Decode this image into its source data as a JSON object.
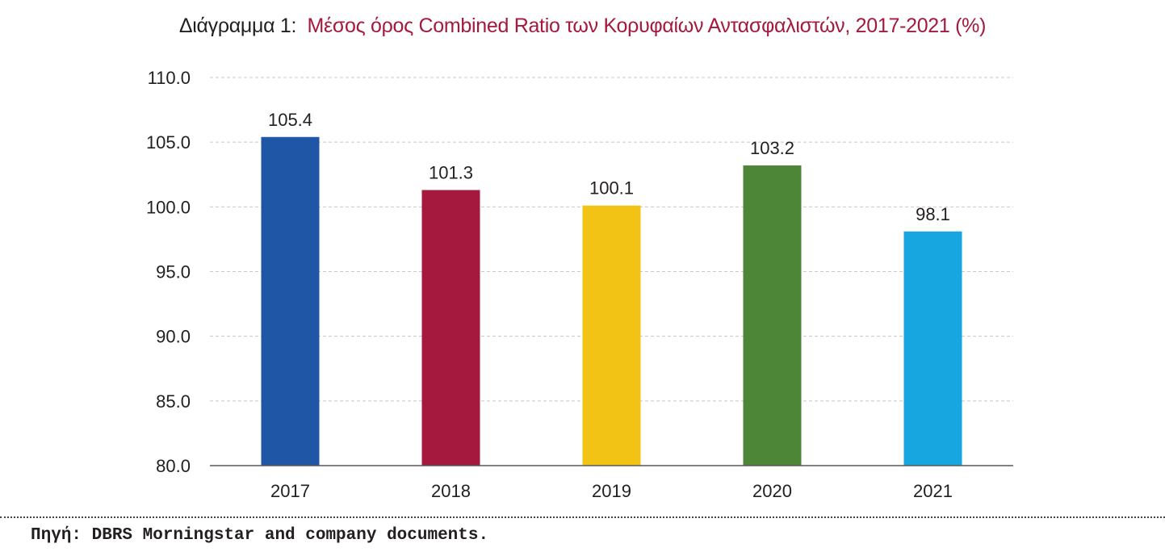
{
  "title": {
    "label": "Διάγραμμα 1:",
    "text": "Μέσος όρος Combined Ratio των Κορυφαίων Αντασφαλιστών, 2017-2021 (%)"
  },
  "source": "Πηγή: DBRS Morningstar and company documents.",
  "chart_data": {
    "type": "bar",
    "title": "Μέσος όρος Combined Ratio των Κορυφαίων Αντασφαλιστών, 2017-2021 (%)",
    "categories": [
      "2017",
      "2018",
      "2019",
      "2020",
      "2021"
    ],
    "values": [
      105.4,
      101.3,
      100.1,
      103.2,
      98.1
    ],
    "value_labels": [
      "105.4",
      "101.3",
      "100.1",
      "103.2",
      "98.1"
    ],
    "bar_colors": [
      "#1f56a5",
      "#a4193d",
      "#f2c314",
      "#4e8638",
      "#17a6e0"
    ],
    "ylim": [
      80,
      110
    ],
    "yticks": [
      80,
      85,
      90,
      95,
      100,
      105,
      110
    ],
    "ytick_labels": [
      "80.0",
      "85.0",
      "90.0",
      "95.0",
      "100.0",
      "105.0",
      "110.0"
    ],
    "grid": true,
    "legend": false
  }
}
